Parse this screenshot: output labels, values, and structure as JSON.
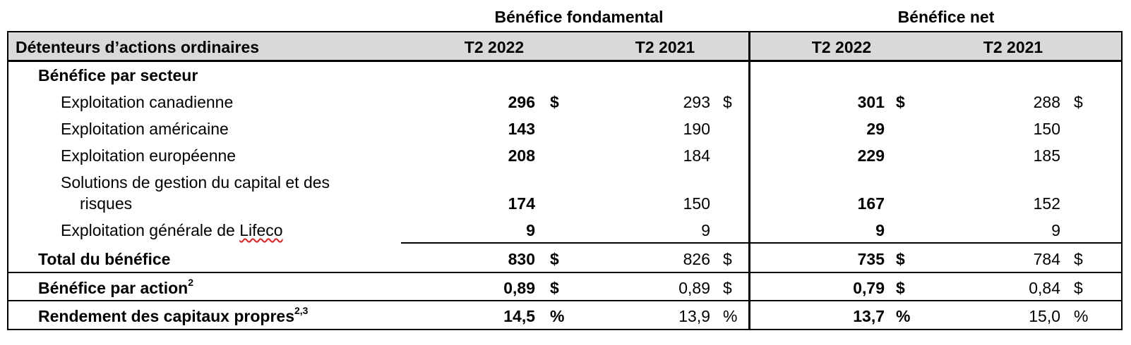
{
  "group_headers": {
    "core": "Bénéfice fondamental",
    "net": "Bénéfice net"
  },
  "columns": {
    "label": "Détenteurs d’actions ordinaires",
    "core_2022": "T2 2022",
    "core_2021": "T2 2021",
    "net_2022": "T2 2022",
    "net_2021": "T2 2021"
  },
  "section_title": "Bénéfice par secteur",
  "rows": [
    {
      "label": "Exploitation canadienne",
      "core_2022": "296",
      "core_2021": "293",
      "net_2022": "301",
      "net_2021": "288",
      "unit": "$"
    },
    {
      "label": "Exploitation américaine",
      "core_2022": "143",
      "core_2021": "190",
      "net_2022": "29",
      "net_2021": "150",
      "unit": ""
    },
    {
      "label": "Exploitation européenne",
      "core_2022": "208",
      "core_2021": "184",
      "net_2022": "229",
      "net_2021": "185",
      "unit": ""
    },
    {
      "label_line1": "Solutions de gestion du capital et des",
      "label_line2": "risques",
      "core_2022": "174",
      "core_2021": "150",
      "net_2022": "167",
      "net_2021": "152",
      "unit": ""
    },
    {
      "label_prefix": "Exploitation générale de ",
      "label_word": "Lifeco",
      "core_2022": "9",
      "core_2021": "9",
      "net_2022": "9",
      "net_2021": "9",
      "unit": ""
    }
  ],
  "total": {
    "label": "Total du bénéfice",
    "core_2022": "830",
    "core_2021": "826",
    "net_2022": "735",
    "net_2021": "784",
    "unit": "$"
  },
  "eps": {
    "label": "Bénéfice par action",
    "note": "2",
    "core_2022": "0,89",
    "core_2021": "0,89",
    "net_2022": "0,79",
    "net_2021": "0,84",
    "unit": "$"
  },
  "roe": {
    "label": "Rendement des capitaux propres",
    "note": "2,3",
    "core_2022": "14,5",
    "core_2021": "13,9",
    "net_2022": "13,7",
    "net_2021": "15,0",
    "unit": "%"
  }
}
